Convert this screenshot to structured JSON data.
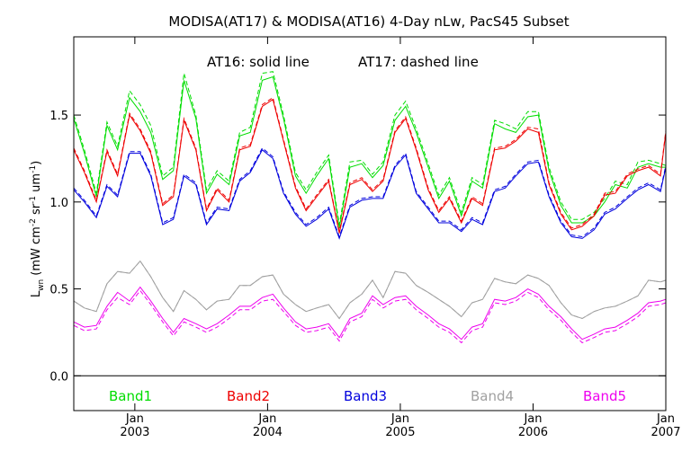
{
  "chart_data": {
    "type": "line",
    "title": "MODISA(AT17) & MODISA(AT16) 4-Day nLw, PacS45 Subset",
    "annotation_solid": "AT16: solid line",
    "annotation_dashed": "AT17: dashed line",
    "ylabel_parts": [
      "L",
      "wn",
      "(mW cm",
      "-2",
      " sr",
      "-1",
      " um",
      "-1",
      ")"
    ],
    "ylim": [
      -0.2,
      1.95
    ],
    "xlim": [
      2002.54,
      2007.0
    ],
    "y_ticks": [
      {
        "value": 0.0,
        "label": "0.0"
      },
      {
        "value": 0.5,
        "label": "0.5"
      },
      {
        "value": 1.0,
        "label": "1.0"
      },
      {
        "value": 1.5,
        "label": "1.5"
      }
    ],
    "x_ticks": [
      {
        "value": 2003.0,
        "month": "Jan",
        "year": "2003"
      },
      {
        "value": 2004.0,
        "month": "Jan",
        "year": "2004"
      },
      {
        "value": 2005.0,
        "month": "Jan",
        "year": "2005"
      },
      {
        "value": 2006.0,
        "month": "Jan",
        "year": "2006"
      },
      {
        "value": 2007.0,
        "month": "Jan",
        "year": "2007"
      }
    ],
    "zero_line": 0.0,
    "x": [
      2002.54,
      2002.62,
      2002.71,
      2002.79,
      2002.87,
      2002.96,
      2003.04,
      2003.12,
      2003.21,
      2003.29,
      2003.37,
      2003.46,
      2003.54,
      2003.62,
      2003.71,
      2003.79,
      2003.87,
      2003.96,
      2004.04,
      2004.12,
      2004.21,
      2004.29,
      2004.37,
      2004.46,
      2004.54,
      2004.62,
      2004.71,
      2004.79,
      2004.87,
      2004.96,
      2005.04,
      2005.12,
      2005.21,
      2005.29,
      2005.37,
      2005.46,
      2005.54,
      2005.62,
      2005.71,
      2005.79,
      2005.87,
      2005.96,
      2006.04,
      2006.12,
      2006.21,
      2006.29,
      2006.37,
      2006.46,
      2006.54,
      2006.62,
      2006.71,
      2006.79,
      2006.87,
      2006.96,
      2007.0
    ],
    "series": [
      {
        "name": "Band1",
        "color": "#00dd00",
        "values_solid": [
          1.48,
          1.28,
          1.03,
          1.44,
          1.3,
          1.6,
          1.52,
          1.4,
          1.13,
          1.18,
          1.7,
          1.48,
          1.05,
          1.16,
          1.1,
          1.38,
          1.4,
          1.7,
          1.72,
          1.48,
          1.15,
          1.05,
          1.15,
          1.25,
          0.85,
          1.2,
          1.22,
          1.14,
          1.21,
          1.47,
          1.55,
          1.4,
          1.2,
          1.02,
          1.12,
          0.92,
          1.12,
          1.08,
          1.45,
          1.42,
          1.4,
          1.49,
          1.5,
          1.18,
          0.98,
          0.88,
          0.88,
          0.92,
          1.0,
          1.1,
          1.08,
          1.2,
          1.22,
          1.2,
          1.2
        ],
        "values_dashed": [
          1.5,
          1.3,
          1.05,
          1.46,
          1.32,
          1.64,
          1.56,
          1.44,
          1.15,
          1.2,
          1.74,
          1.5,
          1.07,
          1.18,
          1.12,
          1.4,
          1.43,
          1.74,
          1.75,
          1.5,
          1.17,
          1.07,
          1.17,
          1.27,
          0.87,
          1.23,
          1.24,
          1.16,
          1.23,
          1.5,
          1.58,
          1.42,
          1.22,
          1.04,
          1.14,
          0.94,
          1.14,
          1.1,
          1.47,
          1.45,
          1.42,
          1.52,
          1.52,
          1.2,
          1.0,
          0.9,
          0.9,
          0.94,
          1.02,
          1.12,
          1.1,
          1.23,
          1.24,
          1.22,
          1.21
        ]
      },
      {
        "name": "Band2",
        "color": "#ee0000",
        "values_solid": [
          1.3,
          1.17,
          1.0,
          1.29,
          1.15,
          1.5,
          1.41,
          1.28,
          0.98,
          1.03,
          1.47,
          1.3,
          0.95,
          1.07,
          1.0,
          1.3,
          1.32,
          1.55,
          1.59,
          1.35,
          1.08,
          0.95,
          1.03,
          1.12,
          0.82,
          1.1,
          1.13,
          1.06,
          1.12,
          1.4,
          1.48,
          1.3,
          1.07,
          0.94,
          1.02,
          0.88,
          1.02,
          0.98,
          1.3,
          1.31,
          1.35,
          1.42,
          1.4,
          1.1,
          0.93,
          0.84,
          0.86,
          0.92,
          1.04,
          1.05,
          1.15,
          1.18,
          1.2,
          1.15,
          1.4
        ],
        "values_dashed": [
          1.31,
          1.18,
          1.01,
          1.3,
          1.16,
          1.51,
          1.42,
          1.29,
          0.99,
          1.04,
          1.48,
          1.31,
          0.96,
          1.08,
          1.01,
          1.31,
          1.33,
          1.56,
          1.6,
          1.36,
          1.09,
          0.96,
          1.04,
          1.13,
          0.83,
          1.11,
          1.14,
          1.07,
          1.13,
          1.41,
          1.49,
          1.31,
          1.08,
          0.95,
          1.03,
          0.89,
          1.03,
          0.99,
          1.31,
          1.32,
          1.36,
          1.43,
          1.42,
          1.11,
          0.94,
          0.85,
          0.87,
          0.93,
          1.05,
          1.06,
          1.16,
          1.19,
          1.21,
          1.16,
          1.41
        ]
      },
      {
        "name": "Band3",
        "color": "#0000dd",
        "values_solid": [
          1.07,
          1.0,
          0.91,
          1.09,
          1.03,
          1.28,
          1.28,
          1.15,
          0.87,
          0.9,
          1.15,
          1.1,
          0.87,
          0.96,
          0.95,
          1.12,
          1.17,
          1.3,
          1.25,
          1.05,
          0.93,
          0.86,
          0.9,
          0.96,
          0.79,
          0.97,
          1.01,
          1.02,
          1.02,
          1.2,
          1.27,
          1.05,
          0.96,
          0.88,
          0.88,
          0.83,
          0.9,
          0.87,
          1.06,
          1.08,
          1.15,
          1.22,
          1.23,
          1.03,
          0.88,
          0.8,
          0.79,
          0.84,
          0.93,
          0.96,
          1.02,
          1.07,
          1.1,
          1.06,
          1.2
        ],
        "values_dashed": [
          1.08,
          1.01,
          0.92,
          1.1,
          1.04,
          1.29,
          1.29,
          1.16,
          0.88,
          0.91,
          1.16,
          1.11,
          0.88,
          0.97,
          0.96,
          1.13,
          1.18,
          1.31,
          1.26,
          1.06,
          0.94,
          0.87,
          0.91,
          0.97,
          0.8,
          0.98,
          1.02,
          1.03,
          1.03,
          1.21,
          1.28,
          1.06,
          0.97,
          0.89,
          0.89,
          0.84,
          0.91,
          0.88,
          1.07,
          1.09,
          1.16,
          1.23,
          1.24,
          1.04,
          0.89,
          0.81,
          0.8,
          0.85,
          0.94,
          0.97,
          1.03,
          1.08,
          1.11,
          1.07,
          1.21
        ]
      },
      {
        "name": "Band4",
        "color": "#a0a0a0",
        "values_solid": [
          0.43,
          0.39,
          0.37,
          0.53,
          0.6,
          0.59,
          0.66,
          0.57,
          0.45,
          0.37,
          0.49,
          0.44,
          0.38,
          0.43,
          0.44,
          0.52,
          0.52,
          0.57,
          0.58,
          0.47,
          0.41,
          0.37,
          0.39,
          0.41,
          0.33,
          0.42,
          0.47,
          0.55,
          0.45,
          0.6,
          0.59,
          0.52,
          0.48,
          0.44,
          0.4,
          0.34,
          0.42,
          0.44,
          0.56,
          0.54,
          0.53,
          0.58,
          0.56,
          0.52,
          0.42,
          0.35,
          0.33,
          0.37,
          0.39,
          0.4,
          0.43,
          0.46,
          0.55,
          0.54,
          0.55
        ],
        "values_dashed": [
          0.43,
          0.39,
          0.37,
          0.53,
          0.6,
          0.59,
          0.66,
          0.57,
          0.45,
          0.37,
          0.49,
          0.44,
          0.38,
          0.43,
          0.44,
          0.52,
          0.52,
          0.57,
          0.58,
          0.47,
          0.41,
          0.37,
          0.39,
          0.41,
          0.33,
          0.42,
          0.47,
          0.55,
          0.45,
          0.6,
          0.59,
          0.52,
          0.48,
          0.44,
          0.4,
          0.34,
          0.42,
          0.44,
          0.56,
          0.54,
          0.53,
          0.58,
          0.56,
          0.52,
          0.42,
          0.35,
          0.33,
          0.37,
          0.39,
          0.4,
          0.43,
          0.46,
          0.55,
          0.54,
          0.55
        ]
      },
      {
        "name": "Band5",
        "color": "#ee00ee",
        "values_solid": [
          0.31,
          0.28,
          0.29,
          0.4,
          0.48,
          0.43,
          0.51,
          0.43,
          0.33,
          0.25,
          0.33,
          0.3,
          0.27,
          0.3,
          0.35,
          0.4,
          0.4,
          0.45,
          0.47,
          0.39,
          0.31,
          0.27,
          0.28,
          0.3,
          0.22,
          0.33,
          0.36,
          0.46,
          0.41,
          0.45,
          0.46,
          0.4,
          0.35,
          0.3,
          0.27,
          0.21,
          0.28,
          0.3,
          0.44,
          0.43,
          0.45,
          0.5,
          0.47,
          0.4,
          0.34,
          0.27,
          0.21,
          0.24,
          0.27,
          0.28,
          0.32,
          0.36,
          0.42,
          0.43,
          0.44
        ],
        "values_dashed": [
          0.29,
          0.26,
          0.27,
          0.38,
          0.45,
          0.41,
          0.49,
          0.41,
          0.31,
          0.23,
          0.31,
          0.28,
          0.25,
          0.28,
          0.33,
          0.38,
          0.38,
          0.43,
          0.44,
          0.37,
          0.29,
          0.25,
          0.26,
          0.28,
          0.2,
          0.31,
          0.34,
          0.44,
          0.39,
          0.43,
          0.44,
          0.38,
          0.33,
          0.28,
          0.25,
          0.19,
          0.26,
          0.28,
          0.42,
          0.41,
          0.43,
          0.48,
          0.45,
          0.38,
          0.32,
          0.25,
          0.19,
          0.22,
          0.25,
          0.26,
          0.3,
          0.34,
          0.4,
          0.41,
          0.42
        ]
      }
    ]
  }
}
